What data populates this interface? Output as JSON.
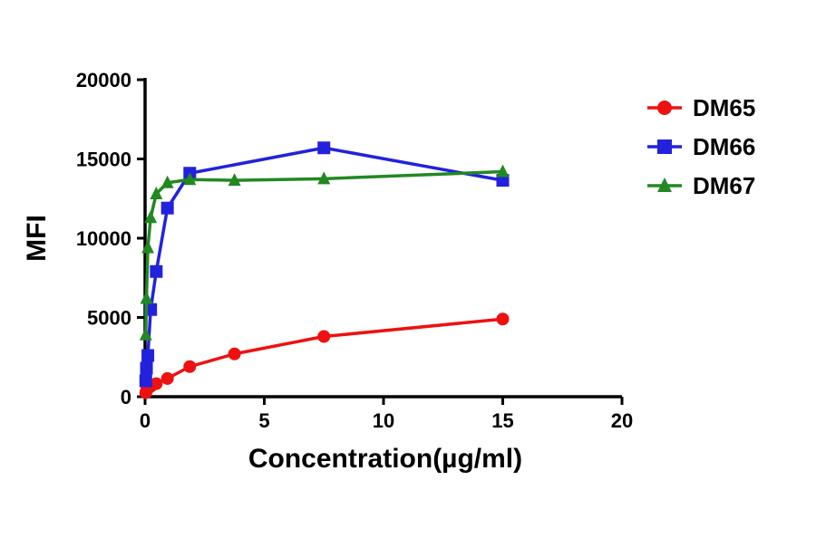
{
  "chart_data": {
    "type": "line",
    "title": "",
    "xlabel": "Concentration(µg/ml)",
    "ylabel": "MFI",
    "xlim": [
      0,
      20
    ],
    "ylim": [
      0,
      20000
    ],
    "x_ticks": [
      "0",
      "5",
      "10",
      "15",
      "20"
    ],
    "y_ticks": [
      "0",
      "5000",
      "10000",
      "15000",
      "20000"
    ],
    "grid": false,
    "legend_position": "right-top",
    "series": [
      {
        "name": "DM65",
        "color": "#ee1111",
        "marker": "circle",
        "x": [
          0.0293,
          0.0586,
          0.117,
          0.234,
          0.469,
          0.938,
          1.875,
          3.75,
          7.5,
          15
        ],
        "y": [
          250,
          380,
          520,
          650,
          820,
          1150,
          1900,
          2700,
          3800,
          4900
        ]
      },
      {
        "name": "DM66",
        "color": "#2222dd",
        "marker": "square",
        "x": [
          0.0293,
          0.0586,
          0.117,
          0.234,
          0.469,
          0.938,
          1.875,
          7.5,
          15
        ],
        "y": [
          1000,
          1800,
          2600,
          5500,
          7900,
          11900,
          14100,
          15700,
          13650
        ]
      },
      {
        "name": "DM67",
        "color": "#228822",
        "marker": "triangle",
        "x": [
          0.0293,
          0.0586,
          0.117,
          0.234,
          0.469,
          0.938,
          1.875,
          3.75,
          7.5,
          15
        ],
        "y": [
          3900,
          6200,
          9400,
          11300,
          12800,
          13500,
          13700,
          13650,
          13750,
          14200
        ]
      }
    ]
  }
}
